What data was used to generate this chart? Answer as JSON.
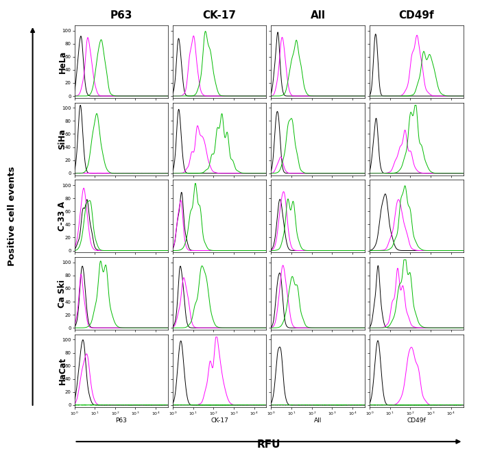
{
  "col_labels": [
    "P63",
    "CK-17",
    "All",
    "CD49f"
  ],
  "row_labels": [
    "HeLa",
    "SiHa",
    "C-33 A",
    "Ca Ski",
    "HaCat"
  ],
  "colors": {
    "black": "#000000",
    "magenta": "#FF00FF",
    "green": "#00BB00"
  },
  "xlabel": "RFU",
  "ylabel": "Positive cell events",
  "xlim_log": [
    1.0,
    40000
  ],
  "ylim": [
    -3,
    108
  ],
  "ytick_vals": [
    0,
    20,
    40,
    60,
    80,
    100
  ]
}
